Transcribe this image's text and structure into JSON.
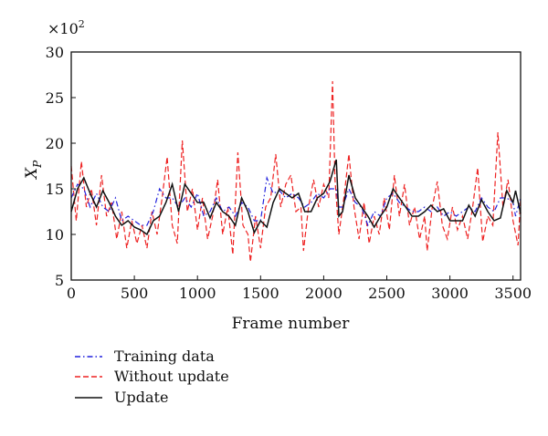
{
  "chart_data": {
    "type": "line",
    "title": "",
    "xlabel": "Frame number",
    "ylabel": "X_P",
    "ylabel_main": "X",
    "ylabel_sub": "P",
    "y_multiplier": "×10",
    "y_multiplier_exp": "2",
    "xlim": [
      0,
      3560
    ],
    "ylim": [
      5,
      30
    ],
    "xticks": [
      0,
      500,
      1000,
      1500,
      2000,
      2500,
      3000,
      3500
    ],
    "yticks": [
      5,
      10,
      15,
      20,
      25,
      30
    ],
    "xtick_labels": [
      "0",
      "500",
      "1000",
      "1500",
      "2000",
      "2500",
      "3000",
      "3500"
    ],
    "ytick_labels": [
      "5",
      "10",
      "15",
      "20",
      "25",
      "30"
    ],
    "grid": false,
    "legend_placement": "below-left",
    "series": [
      {
        "name": "Training data",
        "color": "#2222dd",
        "style": "dashdot",
        "points": [
          [
            0,
            14
          ],
          [
            50,
            15.5
          ],
          [
            100,
            15
          ],
          [
            150,
            13
          ],
          [
            200,
            14.5
          ],
          [
            250,
            13
          ],
          [
            300,
            12.5
          ],
          [
            350,
            14
          ],
          [
            400,
            11.5
          ],
          [
            450,
            12
          ],
          [
            500,
            11.5
          ],
          [
            550,
            11
          ],
          [
            600,
            11
          ],
          [
            650,
            12.5
          ],
          [
            700,
            15
          ],
          [
            750,
            14
          ],
          [
            800,
            14
          ],
          [
            850,
            13
          ],
          [
            900,
            14
          ],
          [
            950,
            13
          ],
          [
            1000,
            14.5
          ],
          [
            1050,
            12
          ],
          [
            1100,
            12.5
          ],
          [
            1150,
            14
          ],
          [
            1200,
            12.5
          ],
          [
            1250,
            13
          ],
          [
            1300,
            12
          ],
          [
            1350,
            13.5
          ],
          [
            1400,
            13
          ],
          [
            1450,
            11.5
          ],
          [
            1500,
            11.5
          ],
          [
            1550,
            16.2
          ],
          [
            1600,
            14.5
          ],
          [
            1650,
            14.8
          ],
          [
            1700,
            14
          ],
          [
            1750,
            14.5
          ],
          [
            1800,
            14
          ],
          [
            1850,
            13
          ],
          [
            1900,
            13.5
          ],
          [
            1950,
            14.5
          ],
          [
            2000,
            14
          ],
          [
            2050,
            15
          ],
          [
            2100,
            15
          ],
          [
            2120,
            13
          ],
          [
            2150,
            13
          ],
          [
            2200,
            15
          ],
          [
            2250,
            13.5
          ],
          [
            2300,
            13
          ],
          [
            2350,
            11
          ],
          [
            2400,
            12.5
          ],
          [
            2450,
            12
          ],
          [
            2500,
            14
          ],
          [
            2550,
            14.5
          ],
          [
            2600,
            13.5
          ],
          [
            2650,
            13
          ],
          [
            2700,
            12.5
          ],
          [
            2750,
            12.5
          ],
          [
            2800,
            13
          ],
          [
            2850,
            12.5
          ],
          [
            2900,
            13
          ],
          [
            2950,
            12
          ],
          [
            3000,
            12.5
          ],
          [
            3050,
            12
          ],
          [
            3100,
            12.5
          ],
          [
            3150,
            13
          ],
          [
            3200,
            12.5
          ],
          [
            3250,
            14
          ],
          [
            3300,
            13
          ],
          [
            3350,
            12.5
          ],
          [
            3400,
            14
          ],
          [
            3450,
            14
          ],
          [
            3500,
            13.5
          ],
          [
            3520,
            12
          ],
          [
            3560,
            14
          ]
        ]
      },
      {
        "name": "Without update",
        "color": "#ee2222",
        "style": "dashed",
        "points": [
          [
            0,
            17.5
          ],
          [
            40,
            11.5
          ],
          [
            80,
            18
          ],
          [
            120,
            13
          ],
          [
            160,
            15
          ],
          [
            200,
            11
          ],
          [
            240,
            16.5
          ],
          [
            280,
            12
          ],
          [
            320,
            13.5
          ],
          [
            360,
            9.5
          ],
          [
            400,
            12.5
          ],
          [
            440,
            8.5
          ],
          [
            480,
            11.5
          ],
          [
            520,
            9
          ],
          [
            560,
            11
          ],
          [
            600,
            8.5
          ],
          [
            640,
            12.5
          ],
          [
            680,
            10
          ],
          [
            720,
            14
          ],
          [
            760,
            18.5
          ],
          [
            800,
            11
          ],
          [
            840,
            9
          ],
          [
            880,
            20.3
          ],
          [
            920,
            12.5
          ],
          [
            960,
            15
          ],
          [
            1000,
            10.5
          ],
          [
            1040,
            14
          ],
          [
            1080,
            9.5
          ],
          [
            1120,
            12
          ],
          [
            1160,
            16
          ],
          [
            1200,
            10
          ],
          [
            1240,
            13
          ],
          [
            1280,
            7.8
          ],
          [
            1320,
            19
          ],
          [
            1360,
            11
          ],
          [
            1400,
            10
          ],
          [
            1420,
            7
          ],
          [
            1460,
            12
          ],
          [
            1500,
            8.5
          ],
          [
            1540,
            13
          ],
          [
            1580,
            14
          ],
          [
            1620,
            18.8
          ],
          [
            1660,
            13
          ],
          [
            1700,
            15.5
          ],
          [
            1740,
            16.5
          ],
          [
            1780,
            12.5
          ],
          [
            1820,
            13
          ],
          [
            1840,
            8.2
          ],
          [
            1880,
            13
          ],
          [
            1920,
            16
          ],
          [
            1960,
            13
          ],
          [
            2000,
            15.5
          ],
          [
            2040,
            14
          ],
          [
            2070,
            26.8
          ],
          [
            2090,
            16
          ],
          [
            2120,
            10
          ],
          [
            2160,
            14
          ],
          [
            2200,
            18.8
          ],
          [
            2240,
            13
          ],
          [
            2280,
            9.5
          ],
          [
            2320,
            13.5
          ],
          [
            2360,
            9
          ],
          [
            2400,
            12
          ],
          [
            2440,
            10
          ],
          [
            2480,
            14
          ],
          [
            2520,
            10.5
          ],
          [
            2560,
            16.5
          ],
          [
            2600,
            12
          ],
          [
            2640,
            15.5
          ],
          [
            2680,
            11
          ],
          [
            2720,
            13
          ],
          [
            2760,
            9.5
          ],
          [
            2800,
            12
          ],
          [
            2820,
            8.2
          ],
          [
            2860,
            13
          ],
          [
            2900,
            15.8
          ],
          [
            2940,
            11
          ],
          [
            2980,
            9.5
          ],
          [
            3020,
            13
          ],
          [
            3060,
            10.5
          ],
          [
            3100,
            12
          ],
          [
            3140,
            9.5
          ],
          [
            3180,
            13
          ],
          [
            3220,
            17.3
          ],
          [
            3260,
            9.2
          ],
          [
            3300,
            12
          ],
          [
            3340,
            11
          ],
          [
            3380,
            21.2
          ],
          [
            3420,
            13
          ],
          [
            3460,
            16
          ],
          [
            3500,
            11.5
          ],
          [
            3540,
            8.8
          ],
          [
            3560,
            14
          ]
        ]
      },
      {
        "name": "Update",
        "color": "#111111",
        "style": "solid",
        "points": [
          [
            0,
            12.5
          ],
          [
            50,
            15
          ],
          [
            100,
            16.2
          ],
          [
            150,
            14.5
          ],
          [
            200,
            13
          ],
          [
            250,
            14.8
          ],
          [
            300,
            13.5
          ],
          [
            350,
            12
          ],
          [
            400,
            11
          ],
          [
            450,
            11.5
          ],
          [
            500,
            10.8
          ],
          [
            550,
            10.5
          ],
          [
            600,
            10
          ],
          [
            650,
            11.5
          ],
          [
            700,
            12
          ],
          [
            750,
            13.5
          ],
          [
            800,
            15.5
          ],
          [
            850,
            12.5
          ],
          [
            900,
            15.5
          ],
          [
            950,
            14.5
          ],
          [
            1000,
            13.5
          ],
          [
            1050,
            13.5
          ],
          [
            1100,
            11.8
          ],
          [
            1150,
            13.5
          ],
          [
            1200,
            12.5
          ],
          [
            1250,
            12
          ],
          [
            1300,
            11
          ],
          [
            1350,
            14
          ],
          [
            1400,
            12.5
          ],
          [
            1450,
            10.2
          ],
          [
            1500,
            11.5
          ],
          [
            1550,
            10.8
          ],
          [
            1600,
            13.5
          ],
          [
            1650,
            15
          ],
          [
            1700,
            14.5
          ],
          [
            1750,
            14
          ],
          [
            1800,
            14.5
          ],
          [
            1850,
            12.5
          ],
          [
            1900,
            12.5
          ],
          [
            1950,
            14
          ],
          [
            2000,
            14.5
          ],
          [
            2050,
            15.8
          ],
          [
            2100,
            18.2
          ],
          [
            2120,
            12
          ],
          [
            2150,
            12.5
          ],
          [
            2200,
            16.5
          ],
          [
            2250,
            14
          ],
          [
            2300,
            13
          ],
          [
            2350,
            12
          ],
          [
            2400,
            10.8
          ],
          [
            2450,
            12
          ],
          [
            2500,
            13
          ],
          [
            2550,
            15
          ],
          [
            2600,
            14
          ],
          [
            2650,
            13
          ],
          [
            2700,
            12
          ],
          [
            2750,
            12
          ],
          [
            2800,
            12.5
          ],
          [
            2850,
            13.2
          ],
          [
            2900,
            12.5
          ],
          [
            2950,
            12.8
          ],
          [
            3000,
            11.5
          ],
          [
            3050,
            11.5
          ],
          [
            3100,
            11.5
          ],
          [
            3150,
            13.2
          ],
          [
            3200,
            12
          ],
          [
            3250,
            13.8
          ],
          [
            3300,
            12.5
          ],
          [
            3350,
            11.5
          ],
          [
            3400,
            11.8
          ],
          [
            3450,
            14.8
          ],
          [
            3500,
            13.5
          ],
          [
            3520,
            14.8
          ],
          [
            3560,
            12.3
          ]
        ]
      }
    ]
  }
}
